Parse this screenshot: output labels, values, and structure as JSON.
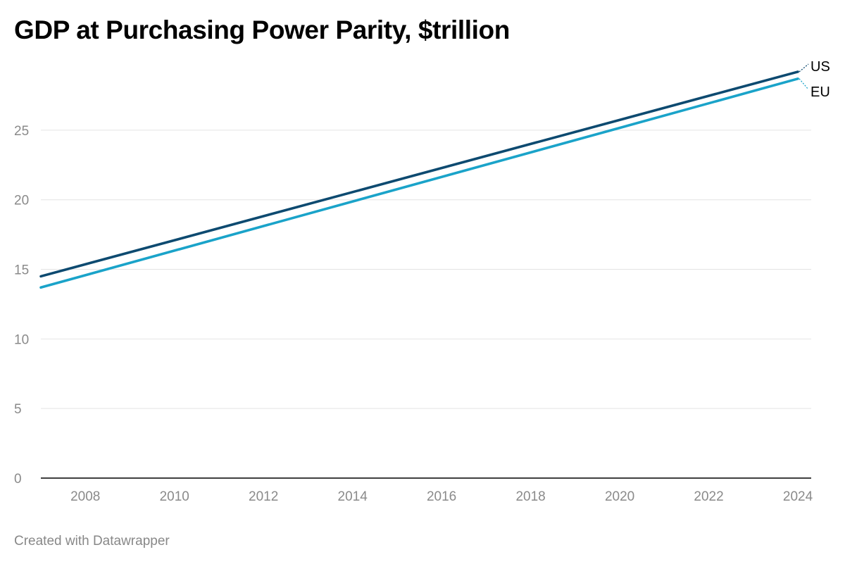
{
  "chart_data": {
    "type": "line",
    "title": "GDP at Purchasing Power Parity, $trillion",
    "xlabel": "",
    "ylabel": "",
    "x": [
      2007,
      2024
    ],
    "xticks": [
      "2008",
      "2010",
      "2012",
      "2014",
      "2016",
      "2018",
      "2020",
      "2022",
      "2024"
    ],
    "yticks": [
      "0",
      "5",
      "10",
      "15",
      "20",
      "25"
    ],
    "ylim": [
      0,
      29.5
    ],
    "xlim": [
      2007,
      2024.3
    ],
    "grid": true,
    "legend": "direct labels at line ends",
    "series": [
      {
        "name": "US",
        "values": [
          14.5,
          29.2
        ],
        "color": "#0d4a70"
      },
      {
        "name": "EU",
        "values": [
          13.7,
          28.7
        ],
        "color": "#1aa3c9"
      }
    ]
  },
  "footer": {
    "credit": "Created with Datawrapper"
  },
  "colors": {
    "grid": "#e4e4e4",
    "axis": "#000000",
    "tick_text": "#8a8a8a"
  }
}
